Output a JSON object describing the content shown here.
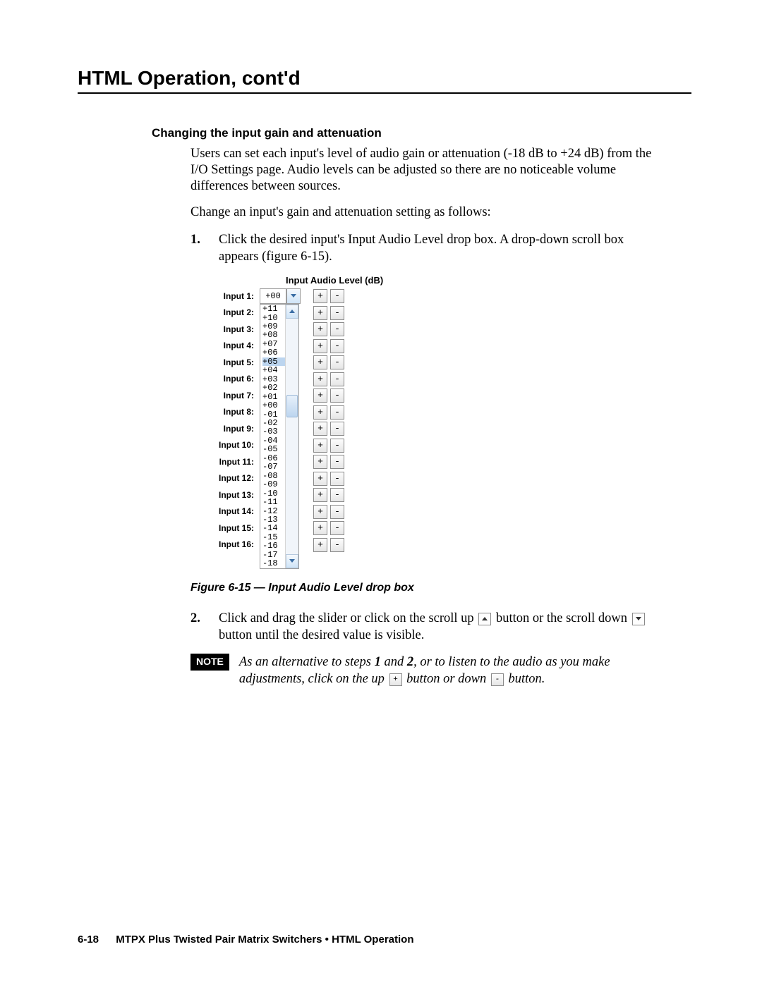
{
  "chapter_title": "HTML Operation, cont'd",
  "section_title": "Changing the input gain and attenuation",
  "para1": "Users can set each input's level of audio gain or attenuation (-18 dB to +24 dB) from the I/O Settings page.  Audio levels can be adjusted so there are no noticeable volume differences between sources.",
  "para2": "Change an input's gain and attenuation setting as follows:",
  "step1_num": "1.",
  "step1_text": "Click the desired input's Input Audio Level drop box.  A drop-down scroll box appears (figure 6-15).",
  "figure_header": "Input Audio Level (dB)",
  "input_labels": [
    "Input 1:",
    "Input 2:",
    "Input 3:",
    "Input 4:",
    "Input 5:",
    "Input 6:",
    "Input 7:",
    "Input 8:",
    "Input 9:",
    "Input 10:",
    "Input 11:",
    "Input 12:",
    "Input 13:",
    "Input 14:",
    "Input 15:",
    "Input 16:"
  ],
  "selected_value": "+00",
  "list_values": [
    "+11",
    "+10",
    "+09",
    "+08",
    "+07",
    "+06",
    "+05",
    "+04",
    "+03",
    "+02",
    "+01",
    "+00",
    "-01",
    "-02",
    "-03",
    "-04",
    "-05",
    "-06",
    "-07",
    "-08",
    "-09",
    "-10",
    "-11",
    "-12",
    "-13",
    "-14",
    "-15",
    "-16",
    "-17",
    "-18"
  ],
  "highlight_value": "+05",
  "plus": "+",
  "minus": "-",
  "figure_caption": "Figure 6-15 — Input Audio Level drop box",
  "step2_num": "2.",
  "step2_text_a": "Click and drag the slider or click on the scroll up ",
  "step2_text_b": " button or the scroll down ",
  "step2_text_c": " button until the desired value is visible.",
  "note_label": "NOTE",
  "note_text_a": "As an alternative to steps ",
  "note_bold1": "1",
  "note_text_b": " and ",
  "note_bold2": "2",
  "note_text_c": ", or to listen to the audio as you make adjustments, click on the up ",
  "note_text_d": " button or down ",
  "note_text_e": " button.",
  "footer_page": "6-18",
  "footer_text": "MTPX Plus Twisted Pair Matrix Switchers • HTML Operation"
}
